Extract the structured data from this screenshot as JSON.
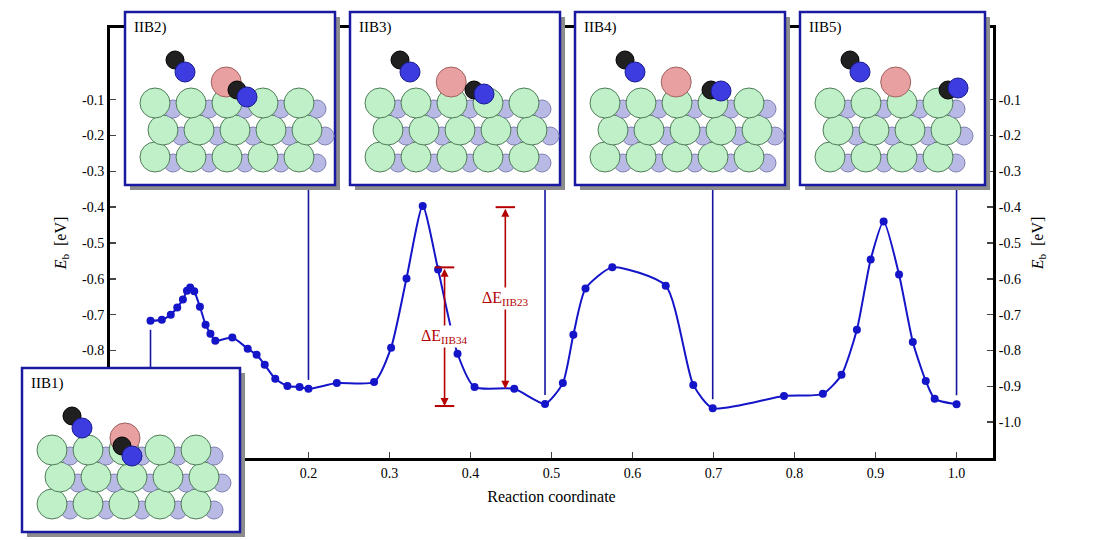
{
  "chart_data": {
    "type": "line",
    "x_label": "Reaction coordinate",
    "y_label": {
      "symbol": "E",
      "subscript": "b",
      "unit": "[eV]"
    },
    "xlim": [
      -0.045,
      1.045
    ],
    "ylim": [
      -1.1,
      0.1
    ],
    "xticks": [
      0.2,
      0.3,
      0.4,
      0.5,
      0.6,
      0.7,
      0.8,
      0.9,
      {
        "value": 1,
        "label": "1.0"
      }
    ],
    "yticks": [
      -0.1,
      -0.2,
      -0.3,
      -0.4,
      -0.5,
      -0.6,
      -0.7,
      -0.8,
      -0.9,
      {
        "value": -1,
        "label": "-1.0"
      }
    ],
    "color": "#1414c8",
    "marker": "circle",
    "line_style": "solid",
    "x": [
      0.005,
      0.019,
      0.03,
      0.038,
      0.045,
      0.05,
      0.054,
      0.059,
      0.066,
      0.073,
      0.079,
      0.085,
      0.106,
      0.125,
      0.136,
      0.146,
      0.159,
      0.174,
      0.189,
      0.2,
      0.235,
      0.281,
      0.302,
      0.321,
      0.341,
      0.36,
      0.384,
      0.405,
      0.454,
      0.492,
      0.514,
      0.527,
      0.542,
      0.575,
      0.641,
      0.675,
      0.699,
      0.787,
      0.835,
      0.858,
      0.877,
      0.894,
      0.91,
      0.929,
      0.946,
      0.962,
      0.973,
      1.0
    ],
    "values": [
      -0.717,
      -0.714,
      -0.7,
      -0.68,
      -0.658,
      -0.633,
      -0.624,
      -0.635,
      -0.678,
      -0.728,
      -0.753,
      -0.773,
      -0.764,
      -0.795,
      -0.812,
      -0.84,
      -0.879,
      -0.899,
      -0.902,
      -0.907,
      -0.891,
      -0.888,
      -0.792,
      -0.599,
      -0.397,
      -0.574,
      -0.809,
      -0.902,
      -0.907,
      -0.949,
      -0.891,
      -0.756,
      -0.627,
      -0.568,
      -0.619,
      -0.896,
      -0.961,
      -0.927,
      -0.921,
      -0.868,
      -0.742,
      -0.546,
      -0.44,
      -0.588,
      -0.776,
      -0.885,
      -0.935,
      -0.95
    ],
    "states": [
      {
        "label": "IIB1)",
        "x": 0.005
      },
      {
        "label": "IIB2)",
        "x": 0.2
      },
      {
        "label": "IIB3)",
        "x": 0.492
      },
      {
        "label": "IIB4)",
        "x": 0.699
      },
      {
        "label": "IIB5)",
        "x": 1.0
      }
    ],
    "annotations": [
      {
        "symbol": "ΔE",
        "subscript": "IIB23",
        "x": 0.443,
        "from": -0.4,
        "to": -0.907,
        "color": "#b40000"
      },
      {
        "symbol": "ΔE",
        "subscript": "IIB34",
        "x": 0.368,
        "from": -0.568,
        "to": -0.955,
        "color": "#b40000"
      }
    ]
  }
}
